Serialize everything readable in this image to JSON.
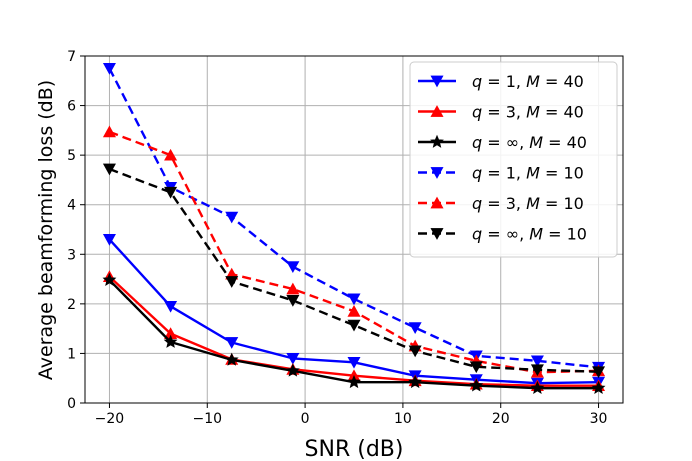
{
  "chart_data": {
    "type": "line",
    "title": "",
    "xlabel": "SNR (dB)",
    "ylabel": "Average beamforming loss (dB)",
    "xlim": [
      -22.5,
      32.5
    ],
    "ylim": [
      0,
      7
    ],
    "xticks": [
      -20,
      -10,
      0,
      10,
      20,
      30
    ],
    "xtick_labels": [
      "−20",
      "−10",
      "0",
      "10",
      "20",
      "30"
    ],
    "yticks": [
      0,
      1,
      2,
      3,
      4,
      5,
      6,
      7
    ],
    "ytick_labels": [
      "0",
      "1",
      "2",
      "3",
      "4",
      "5",
      "6",
      "7"
    ],
    "grid": true,
    "legend_position": "top-right",
    "x": [
      -20,
      -13.75,
      -7.5,
      -1.25,
      5,
      11.25,
      17.5,
      23.75,
      30
    ],
    "series": [
      {
        "name": "q = 1, M = 40",
        "q": "1",
        "M": "40",
        "color": "#0000ff",
        "line_style": "solid",
        "marker": "triangle-down",
        "values": [
          3.3,
          1.95,
          1.22,
          0.9,
          0.82,
          0.55,
          0.47,
          0.4,
          0.42
        ]
      },
      {
        "name": "q = 3, M = 40",
        "q": "3",
        "M": "40",
        "color": "#ff0000",
        "line_style": "solid",
        "marker": "triangle-up",
        "values": [
          2.55,
          1.4,
          0.88,
          0.68,
          0.55,
          0.45,
          0.38,
          0.35,
          0.35
        ]
      },
      {
        "name": "q = ∞, M = 40",
        "q": "∞",
        "M": "40",
        "color": "#000000",
        "line_style": "solid",
        "marker": "star",
        "values": [
          2.48,
          1.23,
          0.87,
          0.65,
          0.42,
          0.42,
          0.35,
          0.3,
          0.3
        ]
      },
      {
        "name": "q = 1, M = 10",
        "q": "1",
        "M": "10",
        "color": "#0000ff",
        "line_style": "dashed",
        "marker": "triangle-down",
        "values": [
          6.75,
          4.35,
          3.75,
          2.75,
          2.1,
          1.52,
          0.95,
          0.85,
          0.72
        ]
      },
      {
        "name": "q = 3, M = 10",
        "q": "3",
        "M": "10",
        "color": "#ff0000",
        "line_style": "dashed",
        "marker": "triangle-up",
        "values": [
          5.47,
          5.0,
          2.6,
          2.3,
          1.85,
          1.15,
          0.85,
          0.62,
          0.65
        ]
      },
      {
        "name": "q = ∞, M = 10",
        "q": "∞",
        "M": "10",
        "color": "#000000",
        "line_style": "dashed",
        "marker": "triangle-down",
        "values": [
          4.72,
          4.25,
          2.45,
          2.07,
          1.57,
          1.05,
          0.73,
          0.67,
          0.63
        ]
      }
    ]
  }
}
